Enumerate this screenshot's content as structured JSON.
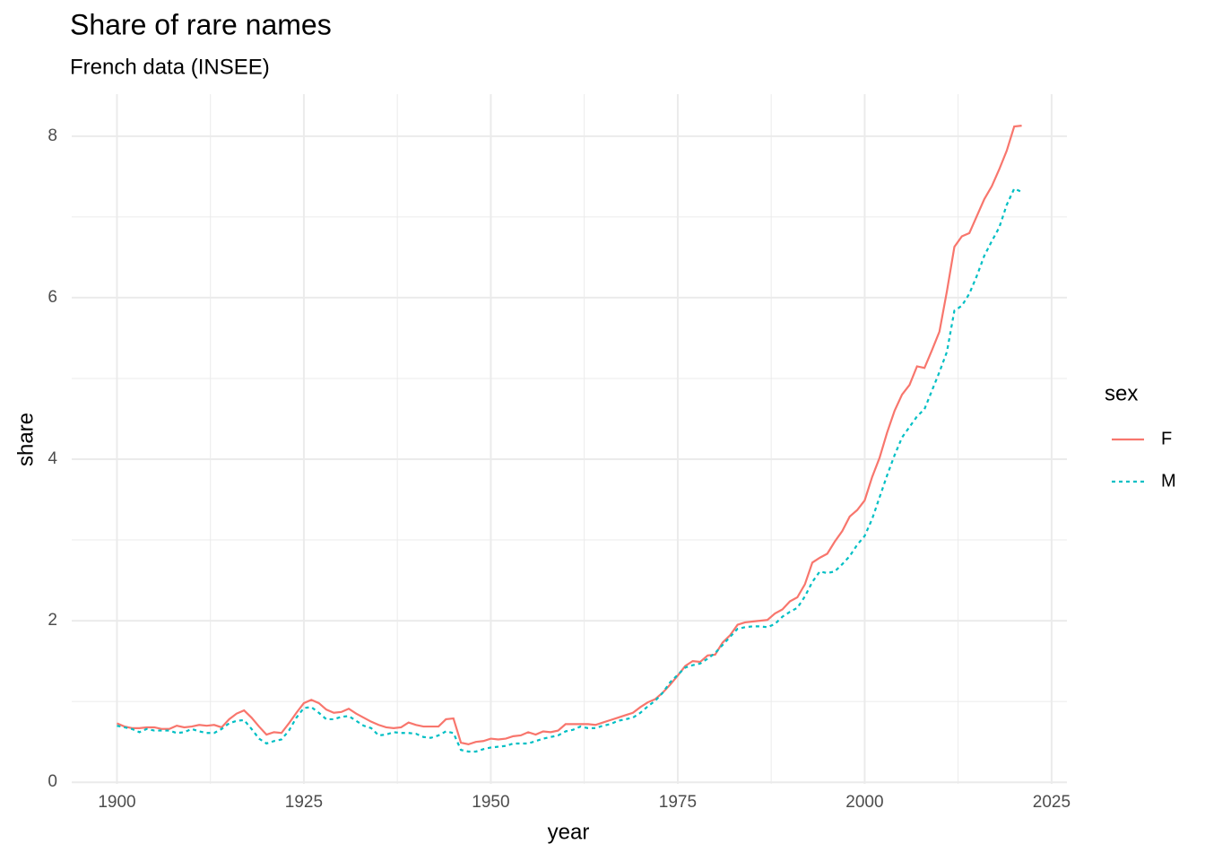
{
  "chart_data": {
    "type": "line",
    "title": "Share of rare names",
    "subtitle": "French data (INSEE)",
    "xlabel": "year",
    "ylabel": "share",
    "legend_title": "sex",
    "legend": "right",
    "grid": true,
    "x": [
      1900,
      1901,
      1902,
      1903,
      1904,
      1905,
      1906,
      1907,
      1908,
      1909,
      1910,
      1911,
      1912,
      1913,
      1914,
      1915,
      1916,
      1917,
      1918,
      1919,
      1920,
      1921,
      1922,
      1923,
      1924,
      1925,
      1926,
      1927,
      1928,
      1929,
      1930,
      1931,
      1932,
      1933,
      1934,
      1935,
      1936,
      1937,
      1938,
      1939,
      1940,
      1941,
      1942,
      1943,
      1944,
      1945,
      1946,
      1947,
      1948,
      1949,
      1950,
      1951,
      1952,
      1953,
      1954,
      1955,
      1956,
      1957,
      1958,
      1959,
      1960,
      1961,
      1962,
      1963,
      1964,
      1965,
      1966,
      1967,
      1968,
      1969,
      1970,
      1971,
      1972,
      1973,
      1974,
      1975,
      1976,
      1977,
      1978,
      1979,
      1980,
      1981,
      1982,
      1983,
      1984,
      1985,
      1986,
      1987,
      1988,
      1989,
      1990,
      1991,
      1992,
      1993,
      1994,
      1995,
      1996,
      1997,
      1998,
      1999,
      2000,
      2001,
      2002,
      2003,
      2004,
      2005,
      2006,
      2007,
      2008,
      2009,
      2010,
      2011,
      2012,
      2013,
      2014,
      2015,
      2016,
      2017,
      2018,
      2019,
      2020,
      2021
    ],
    "series": [
      {
        "name": "F",
        "color": "#F8766D",
        "linetype": "solid",
        "values": [
          0.73,
          0.69,
          0.67,
          0.67,
          0.68,
          0.68,
          0.66,
          0.66,
          0.7,
          0.68,
          0.69,
          0.71,
          0.7,
          0.71,
          0.68,
          0.78,
          0.85,
          0.89,
          0.8,
          0.69,
          0.59,
          0.62,
          0.61,
          0.73,
          0.86,
          0.98,
          1.02,
          0.98,
          0.9,
          0.86,
          0.87,
          0.91,
          0.85,
          0.8,
          0.75,
          0.71,
          0.68,
          0.67,
          0.68,
          0.74,
          0.71,
          0.69,
          0.69,
          0.69,
          0.78,
          0.79,
          0.49,
          0.47,
          0.5,
          0.51,
          0.54,
          0.53,
          0.54,
          0.57,
          0.58,
          0.62,
          0.59,
          0.63,
          0.62,
          0.64,
          0.72,
          0.72,
          0.72,
          0.72,
          0.71,
          0.74,
          0.77,
          0.8,
          0.83,
          0.86,
          0.93,
          0.99,
          1.03,
          1.11,
          1.21,
          1.32,
          1.44,
          1.5,
          1.49,
          1.57,
          1.58,
          1.73,
          1.82,
          1.95,
          1.98,
          1.99,
          2.0,
          2.01,
          2.09,
          2.14,
          2.24,
          2.29,
          2.45,
          2.72,
          2.78,
          2.83,
          2.98,
          3.11,
          3.29,
          3.37,
          3.49,
          3.78,
          4.02,
          4.33,
          4.6,
          4.8,
          4.92,
          5.15,
          5.13,
          5.35,
          5.58,
          6.08,
          6.63,
          6.76,
          6.8,
          7.01,
          7.22,
          7.38,
          7.59,
          7.82,
          8.12,
          8.13
        ]
      },
      {
        "name": "M",
        "color": "#00BFC4",
        "linetype": "dotted",
        "values": [
          0.7,
          0.68,
          0.66,
          0.62,
          0.66,
          0.64,
          0.64,
          0.64,
          0.61,
          0.62,
          0.66,
          0.63,
          0.61,
          0.61,
          0.66,
          0.73,
          0.76,
          0.77,
          0.66,
          0.54,
          0.48,
          0.51,
          0.53,
          0.64,
          0.8,
          0.92,
          0.93,
          0.86,
          0.78,
          0.78,
          0.81,
          0.82,
          0.76,
          0.7,
          0.67,
          0.58,
          0.59,
          0.62,
          0.61,
          0.61,
          0.6,
          0.56,
          0.55,
          0.58,
          0.63,
          0.61,
          0.4,
          0.38,
          0.38,
          0.41,
          0.43,
          0.44,
          0.45,
          0.48,
          0.48,
          0.48,
          0.51,
          0.54,
          0.56,
          0.58,
          0.63,
          0.65,
          0.69,
          0.67,
          0.67,
          0.7,
          0.72,
          0.76,
          0.78,
          0.8,
          0.86,
          0.94,
          1.01,
          1.11,
          1.24,
          1.33,
          1.42,
          1.45,
          1.47,
          1.53,
          1.6,
          1.7,
          1.8,
          1.9,
          1.92,
          1.93,
          1.93,
          1.92,
          1.96,
          2.05,
          2.11,
          2.16,
          2.3,
          2.48,
          2.61,
          2.59,
          2.61,
          2.7,
          2.8,
          2.94,
          3.05,
          3.26,
          3.53,
          3.8,
          4.05,
          4.27,
          4.4,
          4.53,
          4.62,
          4.85,
          5.08,
          5.33,
          5.84,
          5.9,
          6.05,
          6.27,
          6.52,
          6.7,
          6.87,
          7.15,
          7.35,
          7.31
        ]
      }
    ],
    "xlim": [
      1893.95,
      2027.05
    ],
    "xticks": [
      1900,
      1925,
      1950,
      1975,
      2000,
      2025
    ],
    "xminor": [
      1912.5,
      1937.5,
      1962.5,
      1987.5,
      2012.5
    ],
    "ylim": [
      -0.02,
      8.52
    ],
    "yticks": [
      0,
      2,
      4,
      6,
      8
    ],
    "yminor": [
      1,
      3,
      5,
      7
    ]
  }
}
